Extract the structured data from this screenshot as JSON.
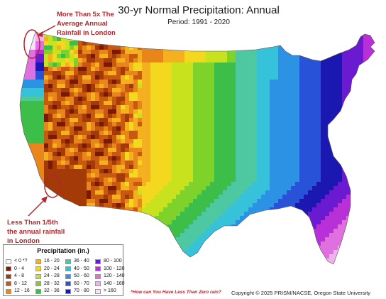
{
  "title": "30-yr Normal Precipitation: Annual",
  "period": "Period: 1991 - 2020",
  "annotations": {
    "top": "More Than 5x The\nAverage Annual\nRainfall in London",
    "bottom": "Less Than 1/5th\nthe annual rainfall\nin London"
  },
  "legend": {
    "title": "Precipitation (in.)",
    "items": [
      {
        "label": "< 0 *?",
        "color": "#ffffff"
      },
      {
        "label": "0 - 4",
        "color": "#7a1a05"
      },
      {
        "label": "4 - 8",
        "color": "#a33a08"
      },
      {
        "label": "8 - 12",
        "color": "#c85a10"
      },
      {
        "label": "12 - 16",
        "color": "#e8861c"
      },
      {
        "label": "16 - 20",
        "color": "#f5b020"
      },
      {
        "label": "20 - 24",
        "color": "#f4d820"
      },
      {
        "label": "24 - 28",
        "color": "#c8e21e"
      },
      {
        "label": "28 - 32",
        "color": "#7ed22a"
      },
      {
        "label": "32 - 36",
        "color": "#3cbe48"
      },
      {
        "label": "36 - 40",
        "color": "#4ec8a0"
      },
      {
        "label": "40 - 50",
        "color": "#36c2d8"
      },
      {
        "label": "50 - 60",
        "color": "#2c92e4"
      },
      {
        "label": "60 - 70",
        "color": "#2852d8"
      },
      {
        "label": "70 - 80",
        "color": "#1a18b0"
      },
      {
        "label": "80 - 100",
        "color": "#6a1ad0"
      },
      {
        "label": "100 - 120",
        "color": "#b830d8"
      },
      {
        "label": "120 - 140",
        "color": "#e070e0"
      },
      {
        "label": "140 - 160",
        "color": "#efb2ec"
      },
      {
        "label": "> 160",
        "color": "#f8e2f6"
      }
    ]
  },
  "footnote": "*How can You Have Less Than Zero rain?",
  "copyright": "Copyright © 2025 PRISM/NACSE, Oregon State University"
}
